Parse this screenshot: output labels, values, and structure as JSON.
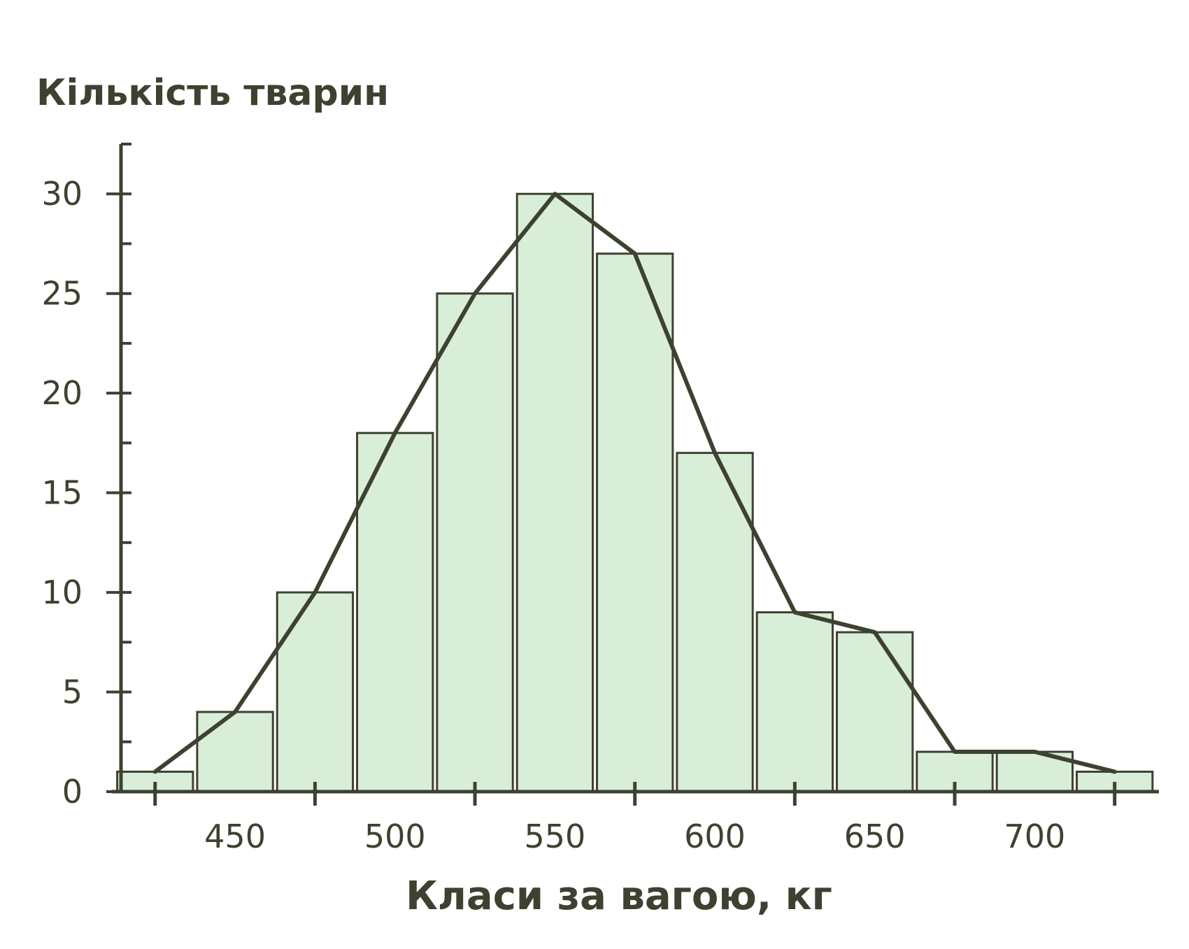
{
  "colors": {
    "ink": "#3d4230",
    "bar_fill": "#d9eed9",
    "background": "#ffffff"
  },
  "chart_data": {
    "type": "bar",
    "title": "",
    "ylabel": "Кількість тварин",
    "xlabel": "Класи за вагою, кг",
    "ylim": [
      0,
      32.5
    ],
    "xlim": [
      411.5,
      739.5
    ],
    "y_ticks": [
      0,
      5,
      10,
      15,
      20,
      25,
      30
    ],
    "y_minor_step": 2.5,
    "x_ticks": [
      450,
      500,
      550,
      600,
      650,
      700
    ],
    "x_tick_marks": [
      425,
      475,
      525,
      575,
      625,
      675,
      725
    ],
    "bin_width": 25,
    "bins": [
      {
        "start": 412.5,
        "end": 437.5,
        "count": 1
      },
      {
        "start": 437.5,
        "end": 462.5,
        "count": 4
      },
      {
        "start": 462.5,
        "end": 487.5,
        "count": 10
      },
      {
        "start": 487.5,
        "end": 512.5,
        "count": 18
      },
      {
        "start": 512.5,
        "end": 537.5,
        "count": 25
      },
      {
        "start": 537.5,
        "end": 562.5,
        "count": 30
      },
      {
        "start": 562.5,
        "end": 587.5,
        "count": 27
      },
      {
        "start": 587.5,
        "end": 612.5,
        "count": 17
      },
      {
        "start": 612.5,
        "end": 637.5,
        "count": 9
      },
      {
        "start": 637.5,
        "end": 662.5,
        "count": 8
      },
      {
        "start": 662.5,
        "end": 687.5,
        "count": 2
      },
      {
        "start": 687.5,
        "end": 712.5,
        "count": 2
      },
      {
        "start": 712.5,
        "end": 737.5,
        "count": 1
      }
    ],
    "polygon": {
      "x": [
        425,
        450,
        475,
        500,
        525,
        550,
        575,
        600,
        625,
        650,
        675,
        700,
        725
      ],
      "y": [
        1,
        4,
        10,
        18,
        25,
        30,
        27,
        17,
        9,
        8,
        2,
        2,
        1
      ]
    },
    "grid": false,
    "legend": "none"
  }
}
